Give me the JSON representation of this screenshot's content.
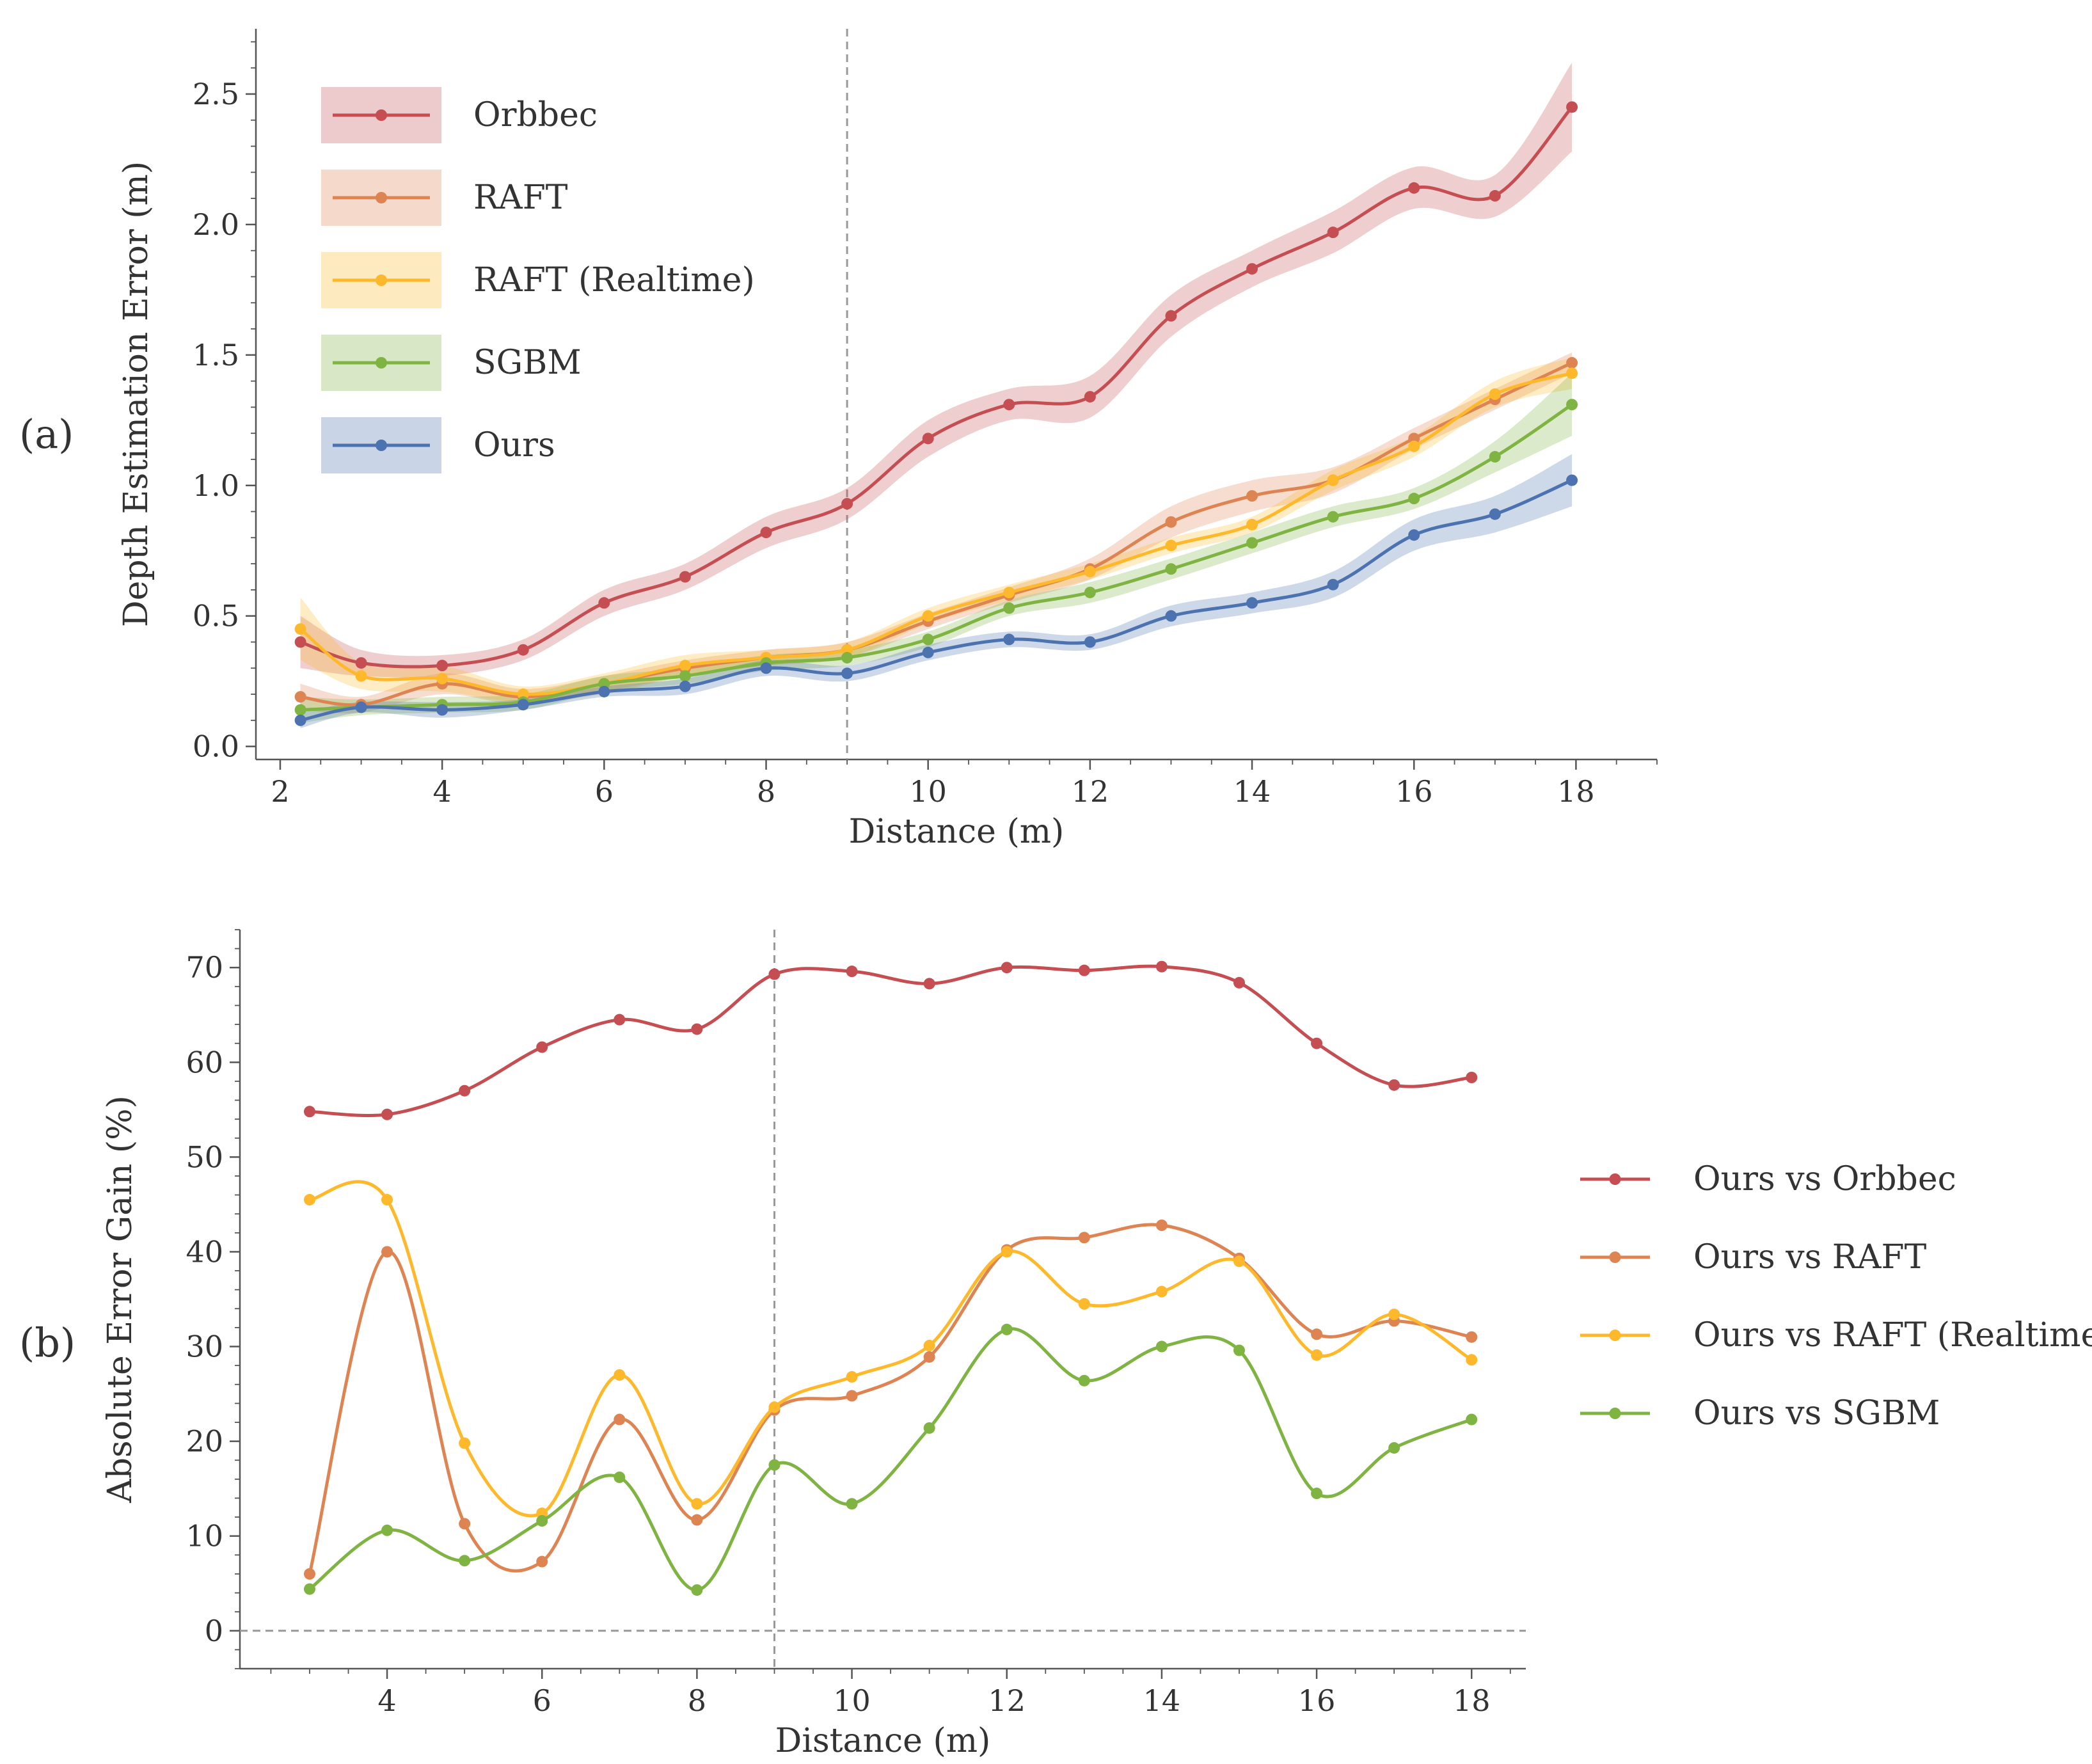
{
  "panels": {
    "a": "(a)",
    "b": "(b)"
  },
  "chart_data": [
    {
      "id": "a",
      "type": "line",
      "xlabel": "Distance (m)",
      "ylabel": "Depth Estimation Error (m)",
      "xlim": [
        1.7,
        19.0
      ],
      "ylim": [
        -0.05,
        2.75
      ],
      "xticks": [
        2,
        4,
        6,
        8,
        10,
        12,
        14,
        16,
        18
      ],
      "yticks": [
        0.0,
        0.5,
        1.0,
        1.5,
        2.0,
        2.5
      ],
      "ytick_labels": [
        "0.0",
        "0.5",
        "1.0",
        "1.5",
        "2.0",
        "2.5"
      ],
      "vline_x": 9,
      "legend_position": "upper-left",
      "x": [
        2.25,
        3.0,
        4.0,
        5.0,
        6.0,
        7.0,
        8.0,
        9.0,
        10.0,
        11.0,
        12.0,
        13.0,
        14.0,
        15.0,
        16.0,
        17.0,
        17.95
      ],
      "series": [
        {
          "name": "Orbbec",
          "color": "#c44e52",
          "values": [
            0.4,
            0.32,
            0.31,
            0.37,
            0.55,
            0.65,
            0.82,
            0.93,
            1.18,
            1.31,
            1.34,
            1.65,
            1.83,
            1.97,
            2.14,
            2.11,
            2.45
          ],
          "band": [
            0.1,
            0.05,
            0.04,
            0.04,
            0.05,
            0.05,
            0.06,
            0.06,
            0.07,
            0.06,
            0.08,
            0.08,
            0.07,
            0.08,
            0.08,
            0.08,
            0.17
          ]
        },
        {
          "name": "RAFT",
          "color": "#dd8452",
          "values": [
            0.19,
            0.16,
            0.24,
            0.19,
            0.24,
            0.3,
            0.34,
            0.37,
            0.48,
            0.58,
            0.68,
            0.86,
            0.96,
            1.02,
            1.18,
            1.33,
            1.47
          ],
          "band": [
            0.05,
            0.03,
            0.04,
            0.03,
            0.03,
            0.03,
            0.03,
            0.03,
            0.03,
            0.03,
            0.04,
            0.06,
            0.06,
            0.05,
            0.04,
            0.04,
            0.04
          ]
        },
        {
          "name": "RAFT (Realtime)",
          "color": "#fdb92b",
          "values": [
            0.45,
            0.27,
            0.26,
            0.2,
            0.24,
            0.31,
            0.34,
            0.37,
            0.5,
            0.59,
            0.67,
            0.77,
            0.85,
            1.02,
            1.15,
            1.35,
            1.43
          ],
          "band": [
            0.12,
            0.05,
            0.05,
            0.03,
            0.04,
            0.04,
            0.03,
            0.03,
            0.03,
            0.03,
            0.03,
            0.03,
            0.03,
            0.04,
            0.04,
            0.05,
            0.06
          ]
        },
        {
          "name": "SGBM",
          "color": "#7fb342",
          "values": [
            0.14,
            0.15,
            0.16,
            0.17,
            0.24,
            0.27,
            0.32,
            0.34,
            0.41,
            0.53,
            0.59,
            0.68,
            0.78,
            0.88,
            0.95,
            1.11,
            1.31
          ],
          "band": [
            0.05,
            0.03,
            0.03,
            0.03,
            0.03,
            0.03,
            0.03,
            0.03,
            0.03,
            0.03,
            0.04,
            0.04,
            0.04,
            0.04,
            0.04,
            0.06,
            0.12
          ]
        },
        {
          "name": "Ours",
          "color": "#4c72b0",
          "values": [
            0.1,
            0.15,
            0.14,
            0.16,
            0.21,
            0.23,
            0.3,
            0.28,
            0.36,
            0.41,
            0.4,
            0.5,
            0.55,
            0.62,
            0.81,
            0.89,
            1.02
          ],
          "band": [
            0.03,
            0.02,
            0.03,
            0.02,
            0.02,
            0.03,
            0.03,
            0.03,
            0.03,
            0.03,
            0.03,
            0.04,
            0.04,
            0.05,
            0.06,
            0.07,
            0.1
          ]
        }
      ]
    },
    {
      "id": "b",
      "type": "line",
      "xlabel": "Distance (m)",
      "ylabel": "Absolute Error Gain (%)",
      "xlim": [
        2.1,
        18.7
      ],
      "ylim": [
        -4,
        74
      ],
      "xticks": [
        4,
        6,
        8,
        10,
        12,
        14,
        16,
        18
      ],
      "yticks": [
        0,
        10,
        20,
        30,
        40,
        50,
        60,
        70
      ],
      "vline_x": 9,
      "hline_y": 0,
      "legend_position": "right",
      "x": [
        3,
        4,
        5,
        6,
        7,
        8,
        9,
        10,
        11,
        12,
        13,
        14,
        15,
        16,
        17,
        18
      ],
      "series": [
        {
          "name": "Ours vs Orbbec",
          "color": "#c44e52",
          "values": [
            54.8,
            54.5,
            57.0,
            61.6,
            64.5,
            63.5,
            69.3,
            69.6,
            68.3,
            70.0,
            69.7,
            70.1,
            68.4,
            62.0,
            57.6,
            58.4
          ]
        },
        {
          "name": "Ours vs RAFT",
          "color": "#dd8452",
          "values": [
            6.0,
            40.0,
            11.3,
            7.3,
            22.3,
            11.7,
            23.3,
            24.8,
            28.9,
            40.2,
            41.5,
            42.8,
            39.3,
            31.3,
            32.7,
            31.0
          ]
        },
        {
          "name": "Ours vs RAFT (Realtime)",
          "color": "#fdb92b",
          "values": [
            45.5,
            45.5,
            19.8,
            12.4,
            27.0,
            13.4,
            23.6,
            26.8,
            30.1,
            40.0,
            34.5,
            35.8,
            39.0,
            29.1,
            33.4,
            28.6
          ]
        },
        {
          "name": "Ours vs SGBM",
          "color": "#7fb342",
          "values": [
            4.4,
            10.6,
            7.4,
            11.6,
            16.2,
            4.3,
            17.5,
            13.4,
            21.4,
            31.8,
            26.4,
            30.0,
            29.6,
            14.5,
            19.3,
            22.3
          ]
        }
      ]
    }
  ]
}
